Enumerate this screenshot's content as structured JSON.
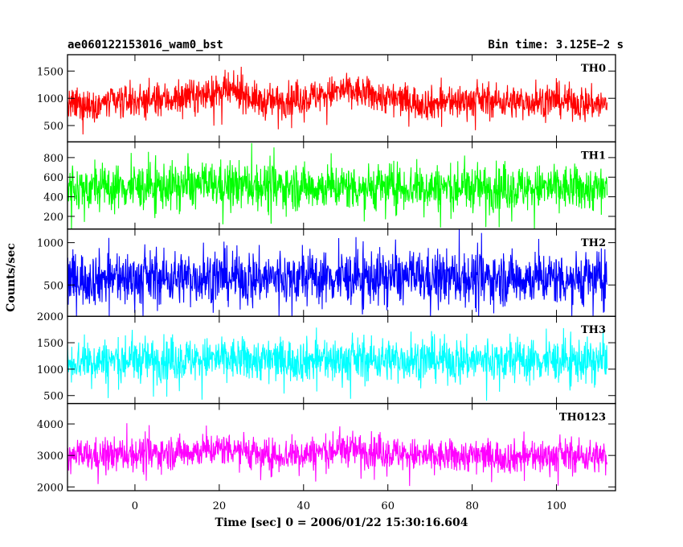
{
  "chart_data": {
    "type": "line",
    "title_left": "ae060122153016_wam0_bst",
    "title_right": "Bin time: 3.125E−2 s",
    "xlabel": "Time [sec] 0 = 2006/01/22 15:30:16.604",
    "ylabel": "Counts/sec",
    "xlim": [
      -16,
      114
    ],
    "x_ticks": [
      0,
      20,
      40,
      60,
      80,
      100
    ],
    "x_range_data": [
      -16,
      112
    ],
    "grid": false,
    "panels": [
      {
        "name": "TH0",
        "color": "#ff0000",
        "ylim": [
          200,
          1800
        ],
        "y_ticks": [
          500,
          1000,
          1500
        ],
        "mean_profile": [
          [
            -16,
            850
          ],
          [
            0,
            960
          ],
          [
            10,
            990
          ],
          [
            20,
            1110
          ],
          [
            25,
            1120
          ],
          [
            30,
            920
          ],
          [
            40,
            1000
          ],
          [
            50,
            1150
          ],
          [
            60,
            1010
          ],
          [
            70,
            900
          ],
          [
            80,
            970
          ],
          [
            90,
            930
          ],
          [
            100,
            960
          ],
          [
            112,
            880
          ]
        ],
        "spread": 300
      },
      {
        "name": "TH1",
        "color": "#00ff00",
        "ylim": [
          70,
          960
        ],
        "y_ticks": [
          200,
          400,
          600,
          800
        ],
        "mean_profile": [
          [
            -16,
            480
          ],
          [
            0,
            500
          ],
          [
            20,
            520
          ],
          [
            40,
            500
          ],
          [
            60,
            500
          ],
          [
            80,
            490
          ],
          [
            100,
            490
          ],
          [
            112,
            480
          ]
        ],
        "spread": 230
      },
      {
        "name": "TH2",
        "color": "#0000ff",
        "ylim": [
          130,
          1160
        ],
        "y_ticks": [
          500,
          1000
        ],
        "mean_profile": [
          [
            -16,
            580
          ],
          [
            0,
            580
          ],
          [
            20,
            590
          ],
          [
            40,
            580
          ],
          [
            60,
            590
          ],
          [
            80,
            580
          ],
          [
            100,
            580
          ],
          [
            112,
            570
          ]
        ],
        "spread": 310
      },
      {
        "name": "TH3",
        "color": "#00ffff",
        "ylim": [
          350,
          2000
        ],
        "y_ticks": [
          500,
          1000,
          1500,
          2000
        ],
        "mean_profile": [
          [
            -16,
            1150
          ],
          [
            0,
            1170
          ],
          [
            20,
            1190
          ],
          [
            40,
            1170
          ],
          [
            60,
            1180
          ],
          [
            80,
            1170
          ],
          [
            100,
            1160
          ],
          [
            112,
            1150
          ]
        ],
        "spread": 400
      },
      {
        "name": "TH0123",
        "color": "#ff00ff",
        "ylim": [
          1880,
          4650
        ],
        "y_ticks": [
          2000,
          3000,
          4000
        ],
        "mean_profile": [
          [
            -16,
            2950
          ],
          [
            0,
            3050
          ],
          [
            10,
            3100
          ],
          [
            20,
            3200
          ],
          [
            25,
            3250
          ],
          [
            30,
            2950
          ],
          [
            40,
            3050
          ],
          [
            50,
            3200
          ],
          [
            60,
            3100
          ],
          [
            70,
            2950
          ],
          [
            80,
            3000
          ],
          [
            90,
            2950
          ],
          [
            100,
            3000
          ],
          [
            112,
            2950
          ]
        ],
        "spread": 520
      }
    ]
  }
}
